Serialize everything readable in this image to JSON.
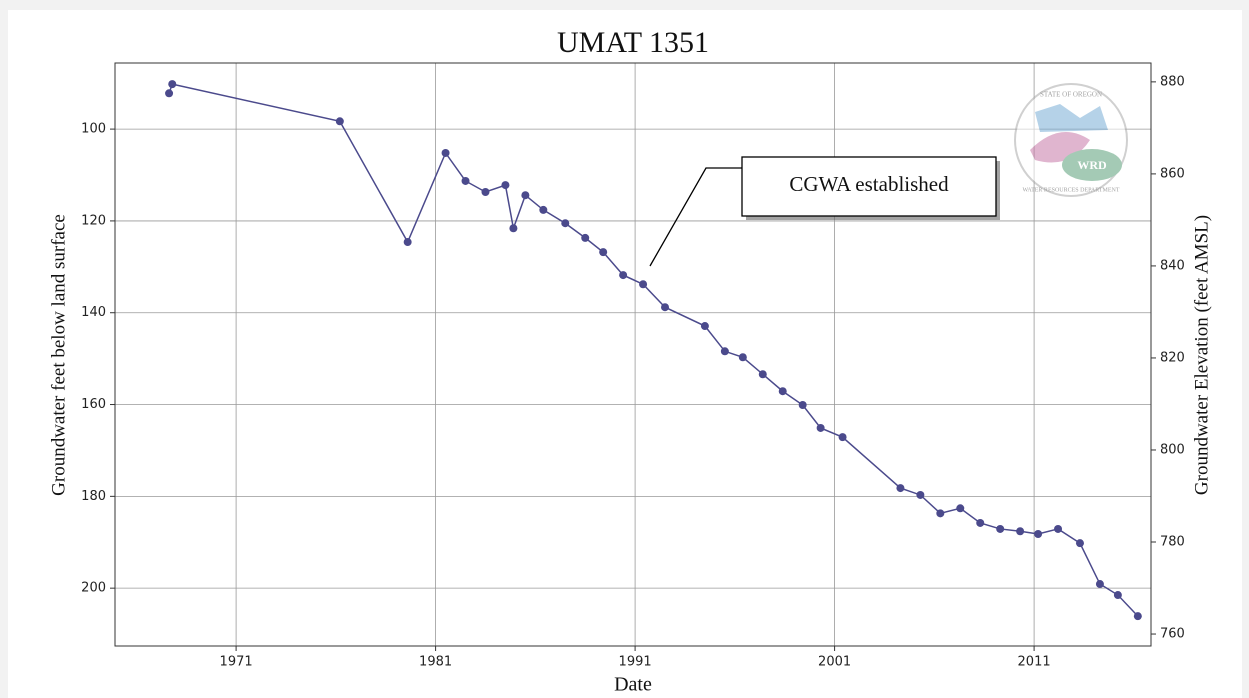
{
  "chart_data": {
    "type": "line",
    "title": "UMAT 1351",
    "x_label": "Date",
    "y_label": "Groundwater feet below land surface",
    "y2_label": "Groundwater Elevation (feet AMSL)",
    "annotation": "CGWA established",
    "x": [
      1967.64,
      1967.8,
      1976.2,
      1979.6,
      1981.5,
      1982.5,
      1983.5,
      1984.5,
      1984.9,
      1985.5,
      1986.4,
      1987.5,
      1988.5,
      1989.4,
      1990.4,
      1991.4,
      1992.5,
      1994.5,
      1995.5,
      1996.4,
      1997.4,
      1998.4,
      1999.4,
      2000.3,
      2001.4,
      2004.3,
      2005.3,
      2006.3,
      2007.3,
      2008.3,
      2009.3,
      2010.3,
      2011.2,
      2012.2,
      2013.3,
      2014.3,
      2015.2,
      2016.2
    ],
    "series": [
      {
        "color": "#4b4a8c",
        "values": [
          92.2,
          90.2,
          98.3,
          124.6,
          105.2,
          111.3,
          113.7,
          112.2,
          121.6,
          114.4,
          117.6,
          120.5,
          123.7,
          126.8,
          131.8,
          133.8,
          138.8,
          142.9,
          148.4,
          149.7,
          153.4,
          157.1,
          160.1,
          165.1,
          167.1,
          178.2,
          179.7,
          183.7,
          182.6,
          185.8,
          187.1,
          187.6,
          188.2,
          187.1,
          190.2,
          199.1,
          201.5,
          206.1
        ]
      }
    ],
    "xlim": [
      1964.93,
      2016.86
    ],
    "xticks": [
      1971,
      1981,
      1991,
      2001,
      2011
    ],
    "ylim": [
      85.6,
      212.6
    ],
    "y_inverted": true,
    "yticks": [
      100,
      120,
      140,
      160,
      180,
      200
    ],
    "y2lim": [
      757.4,
      884.1
    ],
    "y2ticks": [
      760,
      780,
      800,
      820,
      840,
      860,
      880
    ],
    "grid": true
  },
  "logo": {
    "top": "STATE OF OREGON",
    "center": "WRD",
    "bottom": "WATER RESOURCES DEPARTMENT"
  }
}
